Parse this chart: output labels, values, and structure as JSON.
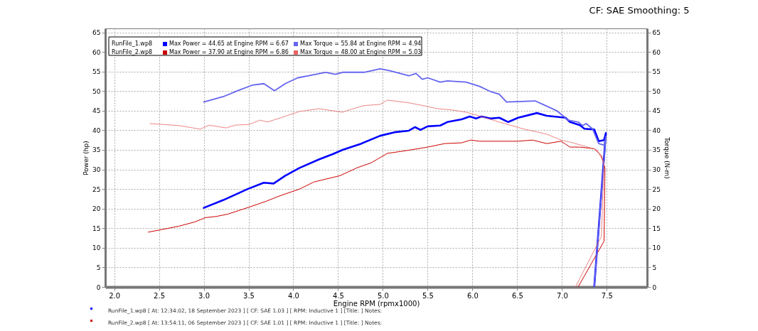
{
  "chart_data": {
    "type": "line",
    "title": "CF: SAE Smoothing: 5",
    "xlabel": "Engine RPM (rpmx1000)",
    "ylabel": "Power (hp)",
    "y2label": "Torque (N-m)",
    "annotations": [
      "RunFile_1.wp8",
      "RunFile_2.wp8",
      "RunFile_1.wp8 [ At: 12:34:02, 18 September 2023 ] [ CF: SAE 1.03 ] [ RPM: Inductive 1 ] [Title: ] Notes:",
      "RunFile_2.wp8 [ At: 13:54:11, 06 September 2023 ] [ CF: SAE 1.01 ] [ RPM: Inductive 1 ] [Title: ] Notes:"
    ],
    "series": [
      {
        "name": "Max Power = 44.65 at Engine RPM = 6.67",
        "color": "#0000ff",
        "x": [
          3.0,
          3.22,
          3.49,
          3.67,
          3.78,
          3.91,
          4.07,
          4.29,
          4.44,
          4.55,
          4.76,
          4.97,
          5.13,
          5.29,
          5.36,
          5.42,
          5.5,
          5.64,
          5.72,
          5.88,
          5.97,
          6.04,
          6.1,
          6.2,
          6.3,
          6.4,
          6.51,
          6.72,
          6.83,
          7.04,
          7.09,
          7.2,
          7.25,
          7.36,
          7.41,
          7.47,
          7.49,
          7.36
        ],
        "values": [
          20.2,
          22.2,
          25.0,
          26.6,
          26.4,
          28.4,
          30.4,
          32.6,
          33.9,
          35.0,
          36.6,
          38.6,
          39.5,
          39.9,
          40.8,
          40.1,
          41.0,
          41.2,
          42.1,
          42.8,
          43.5,
          43.0,
          43.5,
          43.0,
          43.2,
          42.1,
          43.2,
          44.4,
          43.7,
          43.2,
          42.1,
          41.3,
          40.4,
          40.2,
          37.2,
          37.5,
          39.3,
          0
        ]
      },
      {
        "name": "Max Torque = 55.84 at Engine RPM = 4.94",
        "color": "#6464f0",
        "axis": "y2",
        "x": [
          3.0,
          3.22,
          3.38,
          3.54,
          3.67,
          3.79,
          3.91,
          4.05,
          4.17,
          4.36,
          4.47,
          4.55,
          4.79,
          4.97,
          5.08,
          5.29,
          5.37,
          5.44,
          5.5,
          5.64,
          5.72,
          5.93,
          6.08,
          6.2,
          6.3,
          6.38,
          6.7,
          6.94,
          7.07,
          7.18,
          7.23,
          7.27,
          7.34,
          7.41,
          7.47,
          7.49,
          7.36
        ],
        "values": [
          47.2,
          48.6,
          50.1,
          51.5,
          51.9,
          50.1,
          51.9,
          53.4,
          53.9,
          54.8,
          54.3,
          54.8,
          54.8,
          55.7,
          55.2,
          53.9,
          54.5,
          53.0,
          53.4,
          52.3,
          52.6,
          52.3,
          51.2,
          49.9,
          49.2,
          47.2,
          47.5,
          45.0,
          42.6,
          42.1,
          41.2,
          41.7,
          40.4,
          36.6,
          36.2,
          38.4,
          0
        ]
      },
      {
        "name": "Max Power = 37.90 at Engine RPM = 6.86",
        "color": "#cc0000",
        "x": [
          2.38,
          2.52,
          2.72,
          2.9,
          3.02,
          3.14,
          3.27,
          3.51,
          3.7,
          3.83,
          4.07,
          4.23,
          4.52,
          4.71,
          4.87,
          5.05,
          5.26,
          5.5,
          5.69,
          5.88,
          5.98,
          6.08,
          6.3,
          6.51,
          6.67,
          6.83,
          6.99,
          7.09,
          7.2,
          7.36,
          7.44,
          7.48,
          7.47,
          7.18
        ],
        "values": [
          14.0,
          14.6,
          15.5,
          16.6,
          17.7,
          18.0,
          18.6,
          20.4,
          21.9,
          23.1,
          25.0,
          26.8,
          28.4,
          30.4,
          31.7,
          34.1,
          34.8,
          35.7,
          36.6,
          36.8,
          37.5,
          37.2,
          37.2,
          37.2,
          37.5,
          36.6,
          37.2,
          35.7,
          35.7,
          35.3,
          33.5,
          30.4,
          11.7,
          0
        ]
      },
      {
        "name": "Max Torque = 48.00 at Engine RPM = 5.03",
        "color": "#e86464",
        "axis": "y2",
        "x": [
          2.4,
          2.72,
          2.96,
          3.06,
          3.25,
          3.35,
          3.51,
          3.63,
          3.71,
          3.86,
          4.07,
          4.29,
          4.55,
          4.65,
          4.79,
          4.97,
          5.05,
          5.29,
          5.45,
          5.61,
          5.77,
          5.93,
          6.04,
          6.3,
          6.56,
          6.83,
          6.99,
          7.12,
          7.26,
          7.39,
          7.47,
          7.44,
          7.15
        ],
        "values": [
          41.7,
          41.2,
          40.3,
          41.3,
          40.6,
          41.3,
          41.5,
          42.6,
          42.1,
          43.2,
          44.8,
          45.5,
          44.6,
          45.4,
          46.3,
          46.6,
          47.7,
          47.0,
          46.3,
          45.5,
          45.2,
          44.6,
          43.9,
          42.1,
          40.4,
          39.0,
          37.5,
          36.8,
          35.9,
          35.0,
          31.7,
          12.9,
          0
        ]
      }
    ],
    "xlim": [
      1.9,
      7.95
    ],
    "xticks": [
      {
        "value": 2,
        "label": "2.0"
      },
      2.5,
      {
        "value": 3,
        "label": "3.0"
      },
      3.5,
      {
        "value": 4,
        "label": "4.0"
      },
      4.5,
      {
        "value": 5,
        "label": "5.0"
      },
      5.5,
      {
        "value": 6,
        "label": "6.0"
      },
      6.5,
      {
        "value": 7,
        "label": "7.0"
      },
      7.5
    ],
    "ylim": [
      0,
      66
    ],
    "yticks": [
      0,
      5,
      10,
      15,
      20,
      25,
      30,
      35,
      40,
      45,
      50,
      55,
      60,
      65
    ],
    "y2lim": [
      0,
      66
    ],
    "y2ticks": [
      0,
      5,
      10,
      15,
      20,
      25,
      30,
      35,
      40,
      45,
      50,
      55,
      60,
      65
    ],
    "grid": true,
    "legend": "top left"
  }
}
